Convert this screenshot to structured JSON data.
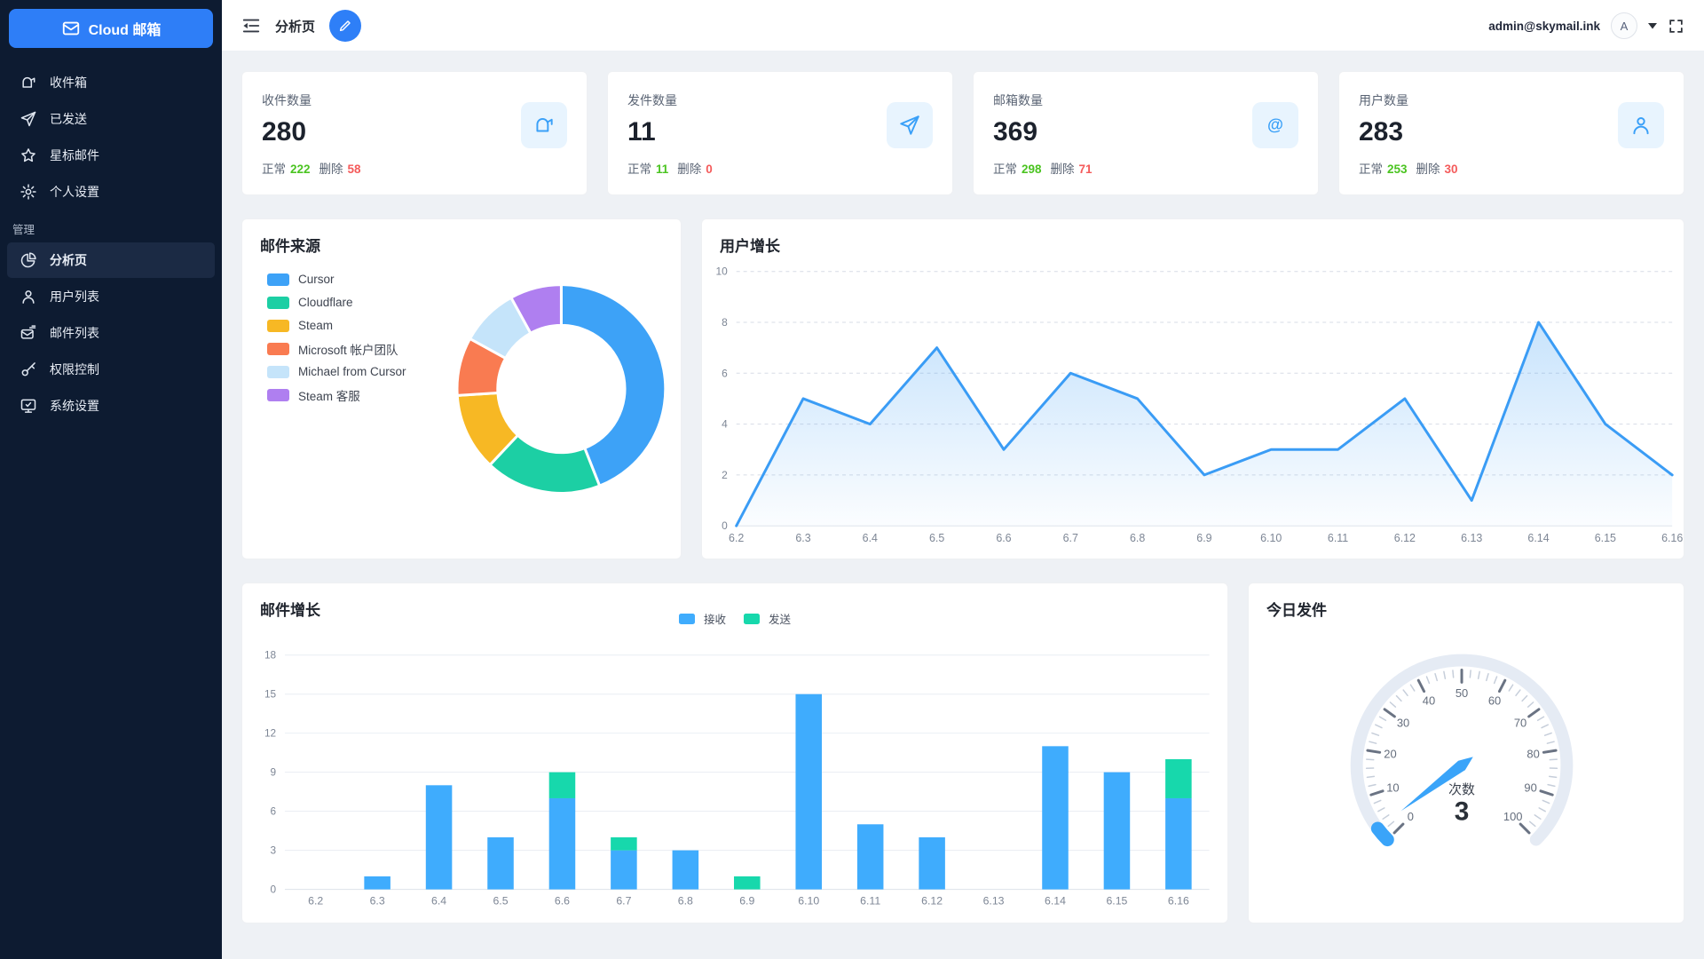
{
  "sidebar": {
    "logo_text": "Cloud 邮箱",
    "section_label": "管理",
    "items": [
      {
        "label": "收件箱"
      },
      {
        "label": "已发送"
      },
      {
        "label": "星标邮件"
      },
      {
        "label": "个人设置"
      },
      {
        "label": "分析页",
        "active": true
      },
      {
        "label": "用户列表"
      },
      {
        "label": "邮件列表"
      },
      {
        "label": "权限控制"
      },
      {
        "label": "系统设置"
      }
    ]
  },
  "topbar": {
    "title": "分析页",
    "user_email": "admin@skymail.ink",
    "avatar_letter": "A"
  },
  "stats": {
    "normal_label": "正常",
    "deleted_label": "删除",
    "cards": [
      {
        "label": "收件数量",
        "value": "280",
        "normal": "222",
        "deleted": "58"
      },
      {
        "label": "发件数量",
        "value": "11",
        "normal": "11",
        "deleted": "0"
      },
      {
        "label": "邮箱数量",
        "value": "369",
        "normal": "298",
        "deleted": "71"
      },
      {
        "label": "用户数量",
        "value": "283",
        "normal": "253",
        "deleted": "30"
      }
    ]
  },
  "colors": {
    "accent": "#2e7ff7",
    "success": "#4bc421",
    "danger": "#f45b5b",
    "sidebar_bg": "#0d1b31"
  },
  "chart_data": [
    {
      "id": "mail_source",
      "type": "pie",
      "title": "邮件来源",
      "labels": [
        "Cursor",
        "Cloudflare",
        "Steam",
        "Microsoft 帐户团队",
        "Michael from Cursor",
        "Steam 客服"
      ],
      "values": [
        44,
        18,
        12,
        9,
        9,
        8
      ],
      "colors": [
        "#3da2f7",
        "#1ccfa4",
        "#f7b824",
        "#f97b51",
        "#c5e4fa",
        "#af7ff0"
      ],
      "donut": true,
      "legend_position": "left"
    },
    {
      "id": "user_growth",
      "type": "area",
      "title": "用户增长",
      "x": [
        "6.2",
        "6.3",
        "6.4",
        "6.5",
        "6.6",
        "6.7",
        "6.8",
        "6.9",
        "6.10",
        "6.11",
        "6.12",
        "6.13",
        "6.14",
        "6.15",
        "6.16"
      ],
      "values": [
        0,
        5,
        4,
        7,
        3,
        6,
        5,
        2,
        3,
        3,
        5,
        1,
        8,
        4,
        2
      ],
      "ylim": [
        0,
        10
      ],
      "yticks": [
        0,
        2,
        4,
        6,
        8,
        10
      ],
      "line_color": "#3a9cf5",
      "grid": "dashed"
    },
    {
      "id": "mail_growth",
      "type": "bar",
      "title": "邮件增长",
      "stacked": true,
      "x": [
        "6.2",
        "6.3",
        "6.4",
        "6.5",
        "6.6",
        "6.7",
        "6.8",
        "6.9",
        "6.10",
        "6.11",
        "6.12",
        "6.13",
        "6.14",
        "6.15",
        "6.16"
      ],
      "series": [
        {
          "name": "接收",
          "color": "#3facfd",
          "values": [
            0,
            1,
            8,
            4,
            7,
            3,
            3,
            0,
            15,
            5,
            4,
            0,
            11,
            9,
            7
          ]
        },
        {
          "name": "发送",
          "color": "#17d8ac",
          "values": [
            0,
            0,
            0,
            0,
            2,
            1,
            0,
            1,
            0,
            0,
            0,
            0,
            0,
            0,
            3
          ]
        }
      ],
      "ylim": [
        0,
        18
      ],
      "yticks": [
        0,
        3,
        6,
        9,
        12,
        15,
        18
      ],
      "legend_position": "top"
    },
    {
      "id": "today_sent",
      "type": "gauge",
      "title": "今日发件",
      "label": "次数",
      "value": 3,
      "min": 0,
      "max": 100,
      "tick_labels": [
        0,
        10,
        20,
        30,
        40,
        50,
        60,
        70,
        80,
        90,
        100
      ],
      "track_color": "#e5ebf4",
      "progress_color": "#3aa4f9"
    }
  ]
}
